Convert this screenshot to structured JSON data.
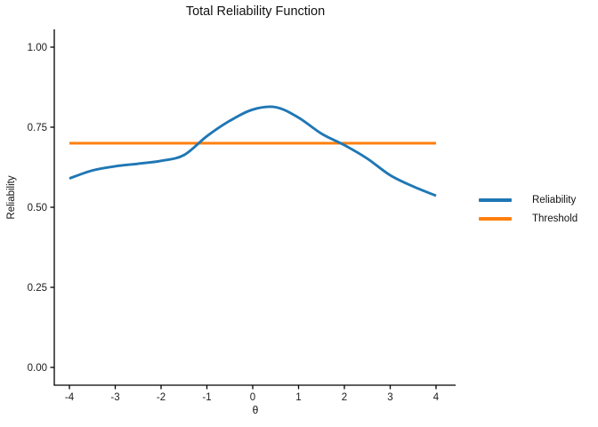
{
  "chart_data": {
    "type": "line",
    "title": "Total Reliability Function",
    "xlabel": "θ",
    "ylabel": "Reliability",
    "xlim": [
      -4.45,
      4.45
    ],
    "ylim": [
      -0.056,
      1.056
    ],
    "x_ticks": {
      "values": [
        -4,
        -3,
        -2,
        -1,
        0,
        1,
        2,
        3,
        4
      ],
      "labels": [
        "-4",
        "-3",
        "-2",
        "-1",
        "0",
        "1",
        "2",
        "3",
        "4"
      ]
    },
    "y_ticks": {
      "values": [
        0,
        0.25,
        0.5,
        0.75,
        1.0
      ],
      "labels": [
        "0.00",
        "0.25",
        "0.50",
        "0.75",
        "1.00"
      ]
    },
    "grid": "off",
    "legend_position": "right",
    "axis_color": "#000000",
    "series": [
      {
        "name": "Reliability",
        "color": "#1f77b4",
        "points": [
          [
            -4.0,
            0.59
          ],
          [
            -3.5,
            0.615
          ],
          [
            -3.0,
            0.628
          ],
          [
            -2.5,
            0.636
          ],
          [
            -2.0,
            0.645
          ],
          [
            -1.5,
            0.663
          ],
          [
            -1.0,
            0.722
          ],
          [
            -0.5,
            0.77
          ],
          [
            0.0,
            0.805
          ],
          [
            0.5,
            0.8125
          ],
          [
            1.0,
            0.78
          ],
          [
            1.5,
            0.73
          ],
          [
            2.0,
            0.694
          ],
          [
            2.5,
            0.652
          ],
          [
            3.0,
            0.6
          ],
          [
            3.5,
            0.565
          ],
          [
            4.0,
            0.536
          ]
        ]
      },
      {
        "name": "Threshold",
        "color": "#ff7f0e",
        "points": [
          [
            -4.0,
            0.7
          ],
          [
            4.0,
            0.7
          ]
        ]
      }
    ]
  }
}
